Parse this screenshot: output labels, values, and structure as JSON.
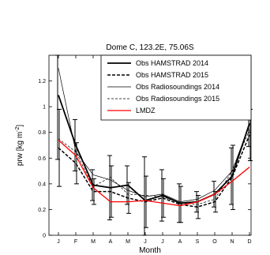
{
  "chart_data": {
    "type": "line",
    "title": "Dome C, 123.2E, 75.06S",
    "xlabel": "Month",
    "ylabel": "prw [kg m",
    "ylabel_sup": "-2",
    "ylabel_tail": "]",
    "categories": [
      "J",
      "F",
      "M",
      "A",
      "M",
      "J",
      "J",
      "A",
      "S",
      "O",
      "N",
      "D"
    ],
    "ylim": [
      0,
      1.4
    ],
    "yticks": [
      "0",
      "0.2",
      "0.4",
      "0.6",
      "0.8",
      "1",
      "1.2"
    ],
    "yticks_values": [
      0,
      0.2,
      0.4,
      0.6,
      0.8,
      1.0,
      1.2
    ],
    "grid": false,
    "legend_position": "top-right",
    "series": [
      {
        "name": "Obs HAMSTRAD 2014",
        "color": "#000000",
        "style": "solid-thick",
        "values": [
          1.09,
          0.7,
          0.39,
          0.37,
          0.39,
          0.27,
          0.31,
          0.25,
          0.26,
          0.32,
          0.46,
          0.87
        ],
        "error": [
          0.5,
          0.2,
          0.12,
          0.25,
          0.15,
          0.34,
          0.2,
          0.15,
          0.08,
          0.1,
          0.22,
          0.18
        ]
      },
      {
        "name": "Obs HAMSTRAD 2015",
        "color": "#000000",
        "style": "dashed-thick",
        "values": [
          0.68,
          0.56,
          0.34,
          0.34,
          0.29,
          0.26,
          0.29,
          0.24,
          0.22,
          0.26,
          0.45,
          0.78
        ],
        "error": [
          0.3,
          0.16,
          0.1,
          0.2,
          0.12,
          0.2,
          0.15,
          0.14,
          0.09,
          0.08,
          0.25,
          0.2
        ]
      },
      {
        "name": "Obs Radiosoundings 2014",
        "color": "#000000",
        "style": "solid-thin",
        "values": [
          1.3,
          0.65,
          0.47,
          0.43,
          0.35,
          0.3,
          0.32,
          0.26,
          0.28,
          0.35,
          0.5,
          0.86
        ],
        "error": [
          0,
          0,
          0,
          0,
          0,
          0,
          0,
          0,
          0,
          0,
          0,
          0
        ]
      },
      {
        "name": "Obs Radiosoundings 2015",
        "color": "#000000",
        "style": "dashed-thin",
        "values": [
          0.75,
          0.65,
          0.38,
          0.45,
          0.32,
          0.31,
          0.3,
          0.25,
          0.24,
          0.28,
          0.5,
          0.82
        ],
        "error": [
          0,
          0,
          0,
          0,
          0,
          0,
          0,
          0,
          0,
          0,
          0,
          0
        ]
      },
      {
        "name": "LMDZ",
        "color": "#ff0000",
        "style": "solid-red",
        "values": [
          0.74,
          0.62,
          0.37,
          0.26,
          0.26,
          0.27,
          0.25,
          0.23,
          0.26,
          0.32,
          0.42,
          0.53
        ],
        "error": [
          0,
          0,
          0,
          0,
          0,
          0,
          0,
          0,
          0,
          0,
          0,
          0
        ]
      }
    ]
  }
}
